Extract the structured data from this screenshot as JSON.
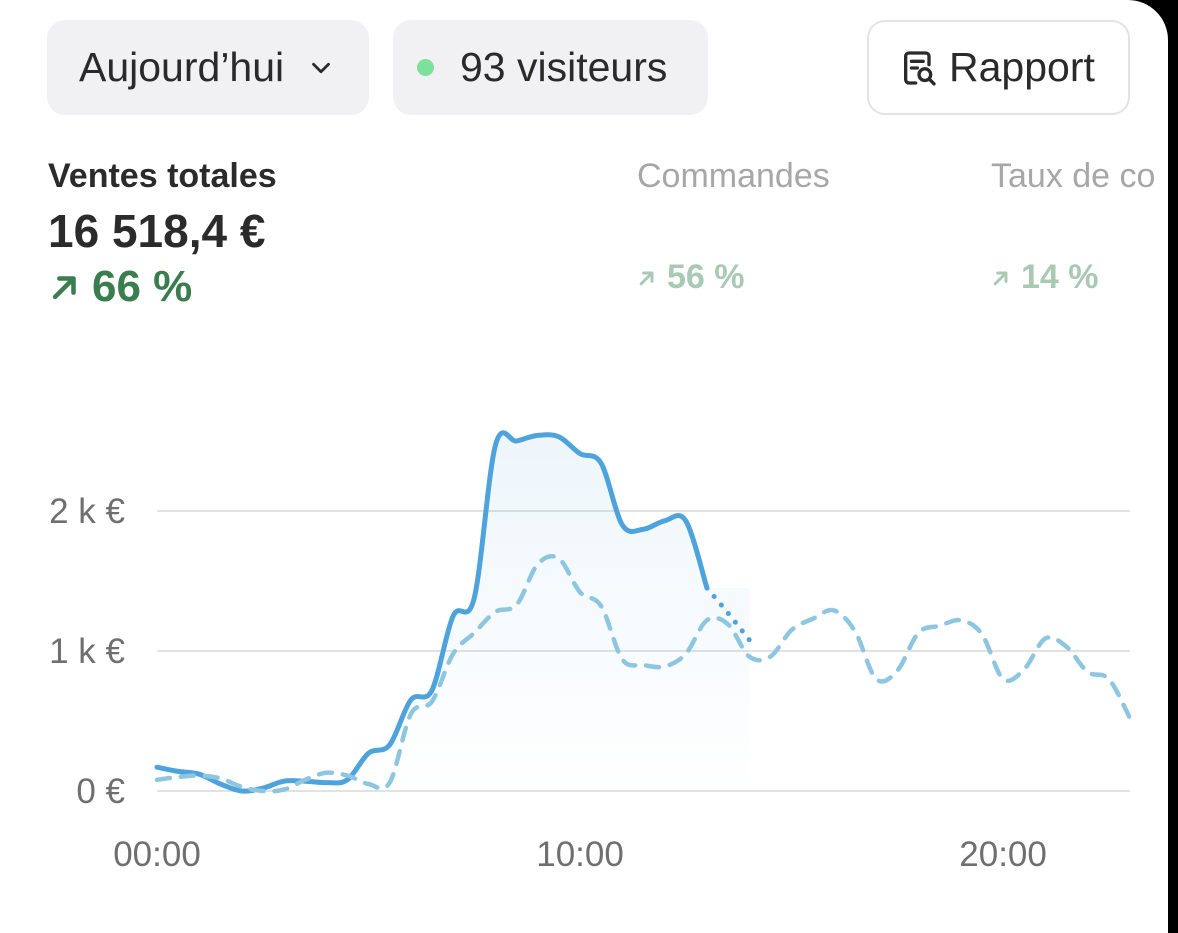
{
  "toolbar": {
    "date_label": "Aujourd’hui",
    "date_icon": "chevron-down-icon",
    "visitors_label": "93 visiteurs",
    "visitors_status_color": "#7be19b",
    "report_label": "Rapport",
    "report_icon": "report-search-icon"
  },
  "metrics": [
    {
      "label": "Ventes totales",
      "value": "16 518,4 €",
      "change": "66 %",
      "trend_icon": "arrow-up-right-icon",
      "active": true
    },
    {
      "label": "Commandes",
      "value": "",
      "change": "56 %",
      "trend_icon": "arrow-up-right-icon",
      "active": false
    },
    {
      "label": "Taux de co",
      "value": "",
      "change": "14 %",
      "trend_icon": "arrow-up-right-icon",
      "active": false
    }
  ],
  "colors": {
    "current_series": "#4ea3dc",
    "comparison_series": "#8ec6e2",
    "positive": "#3a7d4e",
    "gridline": "#e2e2e2"
  },
  "chart_data": {
    "type": "line",
    "title": "",
    "xlabel": "",
    "ylabel": "",
    "x_unit": "hour",
    "xlim": [
      0,
      23
    ],
    "ylim": [
      0,
      2000
    ],
    "y_ticks": [
      {
        "value": 0,
        "label": "0 €"
      },
      {
        "value": 1000,
        "label": "1 k €"
      },
      {
        "value": 2000,
        "label": "2 k €"
      }
    ],
    "x_ticks": [
      {
        "value": 0,
        "label": "00:00"
      },
      {
        "value": 10,
        "label": "10:00"
      },
      {
        "value": 20,
        "label": "20:00"
      }
    ],
    "grid": true,
    "legend": "none",
    "series": [
      {
        "style": "solid-area",
        "x": [
          0,
          0.5,
          1,
          1.5,
          2,
          2.5,
          3,
          3.5,
          4,
          4.5,
          5,
          5.5,
          6,
          6.5,
          7,
          7.5,
          8,
          8.5,
          9,
          9.5,
          10,
          10.5,
          11,
          11.5,
          12,
          12.5,
          13
        ],
        "y": [
          170,
          140,
          120,
          50,
          0,
          20,
          70,
          70,
          60,
          80,
          270,
          330,
          650,
          720,
          1250,
          1380,
          2470,
          2500,
          2540,
          2530,
          2410,
          2340,
          1900,
          1870,
          1930,
          1930,
          1450
        ]
      },
      {
        "style": "dotted",
        "x": [
          13,
          13.5,
          14
        ],
        "y": [
          1450,
          1270,
          1080
        ]
      },
      {
        "style": "dashed",
        "x": [
          0,
          0.5,
          1,
          1.5,
          2,
          2.5,
          3,
          3.5,
          4,
          4.5,
          5,
          5.5,
          6,
          6.5,
          7,
          7.5,
          8,
          8.5,
          9,
          9.5,
          10,
          10.5,
          11,
          11.5,
          12,
          12.5,
          13,
          13.5,
          14,
          14.5,
          15,
          15.5,
          16,
          16.5,
          17,
          17.5,
          18,
          18.5,
          19,
          19.5,
          20,
          20.5,
          21,
          21.5,
          22,
          22.5,
          23
        ],
        "y": [
          80,
          100,
          110,
          90,
          30,
          0,
          10,
          80,
          130,
          110,
          50,
          60,
          550,
          640,
          980,
          1130,
          1280,
          1330,
          1620,
          1660,
          1420,
          1320,
          940,
          900,
          890,
          980,
          1220,
          1190,
          960,
          960,
          1150,
          1230,
          1290,
          1140,
          800,
          860,
          1130,
          1180,
          1220,
          1120,
          800,
          870,
          1090,
          1030,
          850,
          800,
          520
        ]
      }
    ]
  }
}
